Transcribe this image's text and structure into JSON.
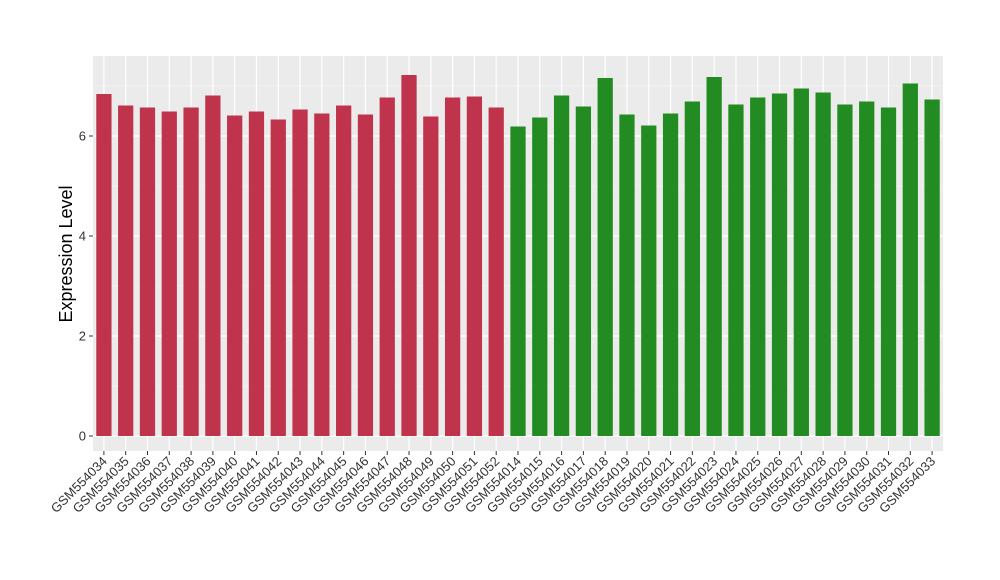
{
  "chart_data": {
    "type": "bar",
    "title": "",
    "xlabel": "",
    "ylabel": "Expression Level",
    "ylim": [
      -0.3,
      7.6
    ],
    "yticks": [
      0,
      2,
      4,
      6
    ],
    "grid": true,
    "background_color": "#ebebeb",
    "categories": [
      "GSM554034",
      "GSM554035",
      "GSM554036",
      "GSM554037",
      "GSM554038",
      "GSM554039",
      "GSM554040",
      "GSM554041",
      "GSM554042",
      "GSM554043",
      "GSM554044",
      "GSM554045",
      "GSM554046",
      "GSM554047",
      "GSM554048",
      "GSM554049",
      "GSM554050",
      "GSM554051",
      "GSM554052",
      "GSM554014",
      "GSM554015",
      "GSM554016",
      "GSM554017",
      "GSM554018",
      "GSM554019",
      "GSM554020",
      "GSM554021",
      "GSM554022",
      "GSM554023",
      "GSM554024",
      "GSM554025",
      "GSM554026",
      "GSM554027",
      "GSM554028",
      "GSM554029",
      "GSM554030",
      "GSM554031",
      "GSM554032",
      "GSM554033"
    ],
    "values": [
      6.84,
      6.61,
      6.57,
      6.49,
      6.57,
      6.81,
      6.41,
      6.49,
      6.33,
      6.53,
      6.45,
      6.61,
      6.43,
      6.77,
      7.22,
      6.39,
      6.77,
      6.79,
      6.57,
      6.19,
      6.37,
      6.81,
      6.59,
      7.16,
      6.43,
      6.21,
      6.45,
      6.69,
      7.18,
      6.63,
      6.77,
      6.85,
      6.95,
      6.87,
      6.63,
      6.69,
      6.57,
      7.05,
      6.73
    ],
    "bar_colors": [
      "#c0334d",
      "#c0334d",
      "#c0334d",
      "#c0334d",
      "#c0334d",
      "#c0334d",
      "#c0334d",
      "#c0334d",
      "#c0334d",
      "#c0334d",
      "#c0334d",
      "#c0334d",
      "#c0334d",
      "#c0334d",
      "#c0334d",
      "#c0334d",
      "#c0334d",
      "#c0334d",
      "#c0334d",
      "#228b22",
      "#228b22",
      "#228b22",
      "#228b22",
      "#228b22",
      "#228b22",
      "#228b22",
      "#228b22",
      "#228b22",
      "#228b22",
      "#228b22",
      "#228b22",
      "#228b22",
      "#228b22",
      "#228b22",
      "#228b22",
      "#228b22",
      "#228b22",
      "#228b22",
      "#228b22"
    ]
  }
}
